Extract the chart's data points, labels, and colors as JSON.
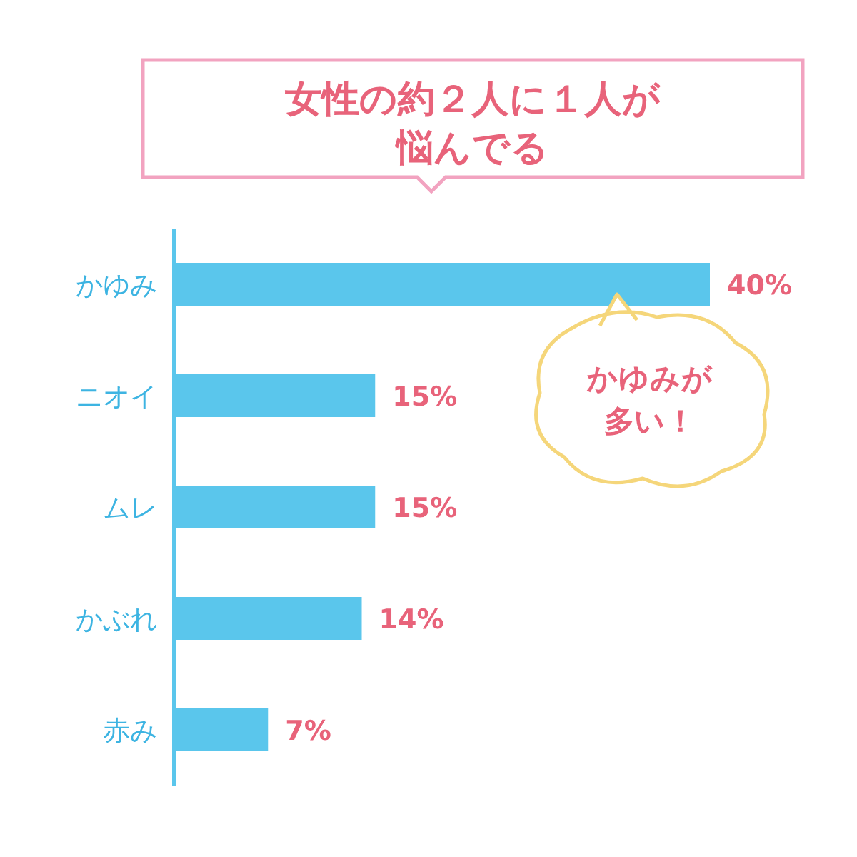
{
  "chart_data": {
    "type": "bar",
    "orientation": "horizontal",
    "title": "女性の約２人に１人が悩んでる",
    "categories": [
      "かゆみ",
      "ニオイ",
      "ムレ",
      "かぶれ",
      "赤み"
    ],
    "values": [
      40,
      15,
      15,
      14,
      7
    ],
    "value_labels": [
      "40%",
      "15%",
      "15%",
      "14%",
      "7%"
    ],
    "color": "#5ac6ec",
    "annotations": [
      "かゆみが多い！"
    ]
  }
}
